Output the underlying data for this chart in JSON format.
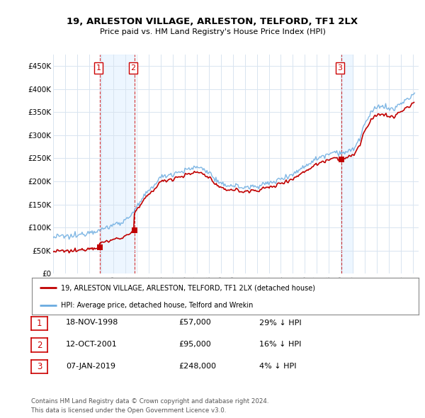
{
  "title": "19, ARLESTON VILLAGE, ARLESTON, TELFORD, TF1 2LX",
  "subtitle": "Price paid vs. HM Land Registry's House Price Index (HPI)",
  "yticks": [
    0,
    50000,
    100000,
    150000,
    200000,
    250000,
    300000,
    350000,
    400000,
    450000
  ],
  "ytick_labels": [
    "£0",
    "£50K",
    "£100K",
    "£150K",
    "£200K",
    "£250K",
    "£300K",
    "£350K",
    "£400K",
    "£450K"
  ],
  "xlim_start": 1995.0,
  "xlim_end": 2025.5,
  "ylim_min": 0,
  "ylim_max": 475000,
  "hpi_color": "#6aabe0",
  "price_color": "#c00000",
  "vline_color": "#cc0000",
  "transaction_label_color": "#cc0000",
  "grid_color": "#d8e4f0",
  "shade_color": "#ddeeff",
  "background_color": "#ffffff",
  "legend_label_price": "19, ARLESTON VILLAGE, ARLESTON, TELFORD, TF1 2LX (detached house)",
  "legend_label_hpi": "HPI: Average price, detached house, Telford and Wrekin",
  "transactions": [
    {
      "num": 1,
      "date_label": "18-NOV-1998",
      "price": 57000,
      "pct": "29%",
      "year": 1998.88
    },
    {
      "num": 2,
      "date_label": "12-OCT-2001",
      "price": 95000,
      "pct": "16%",
      "year": 2001.78
    },
    {
      "num": 3,
      "date_label": "07-JAN-2019",
      "price": 248000,
      "pct": "4%",
      "year": 2019.03
    }
  ],
  "footer1": "Contains HM Land Registry data © Crown copyright and database right 2024.",
  "footer2": "This data is licensed under the Open Government Licence v3.0.",
  "table_rows": [
    [
      "1",
      "18-NOV-1998",
      "£57,000",
      "29% ↓ HPI"
    ],
    [
      "2",
      "12-OCT-2001",
      "£95,000",
      "16% ↓ HPI"
    ],
    [
      "3",
      "07-JAN-2019",
      "£248,000",
      "4% ↓ HPI"
    ]
  ]
}
